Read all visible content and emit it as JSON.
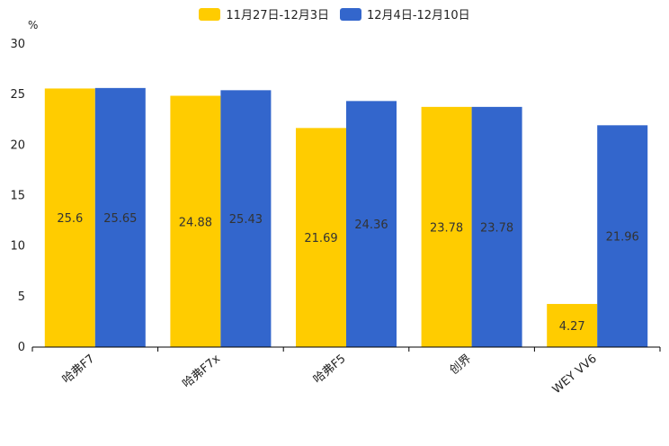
{
  "chart_data": {
    "type": "bar",
    "title": "",
    "ylabel": "%",
    "xlabel": "",
    "ylim": [
      0,
      30
    ],
    "yticks": [
      0,
      5,
      10,
      15,
      20,
      25,
      30
    ],
    "categories": [
      "哈弗F7",
      "哈弗F7x",
      "哈弗F5",
      "创界",
      "WEY VV6"
    ],
    "series": [
      {
        "name": "11月27日-12月3日",
        "color": "#FFCC00",
        "values": [
          25.6,
          24.88,
          21.69,
          23.78,
          4.27
        ]
      },
      {
        "name": "12月4日-12月10日",
        "color": "#3366CC",
        "values": [
          25.65,
          25.43,
          24.36,
          23.78,
          21.96
        ]
      }
    ]
  }
}
